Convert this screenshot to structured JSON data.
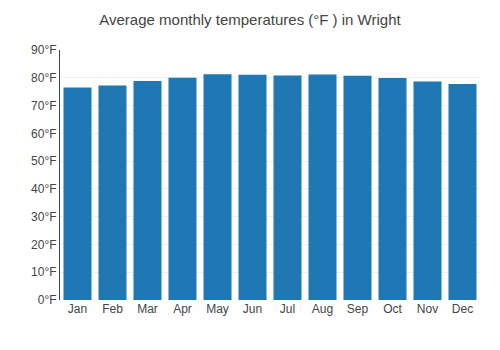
{
  "chart_data": {
    "type": "bar",
    "title": "Average monthly temperatures (°F ) in Wright",
    "categories": [
      "Jan",
      "Feb",
      "Mar",
      "Apr",
      "May",
      "Jun",
      "Jul",
      "Aug",
      "Sep",
      "Oct",
      "Nov",
      "Dec"
    ],
    "values": [
      76.5,
      77.2,
      78.8,
      80.0,
      81.3,
      81.1,
      80.8,
      81.2,
      80.7,
      79.9,
      78.7,
      77.8
    ],
    "ylim": [
      0,
      90
    ],
    "yticks": [
      {
        "value": 0,
        "label": "0°F"
      },
      {
        "value": 10,
        "label": "10°F"
      },
      {
        "value": 20,
        "label": "20°F"
      },
      {
        "value": 30,
        "label": "30°F"
      },
      {
        "value": 40,
        "label": "40°F"
      },
      {
        "value": 50,
        "label": "50°F"
      },
      {
        "value": 60,
        "label": "60°F"
      },
      {
        "value": 70,
        "label": "70°F"
      },
      {
        "value": 80,
        "label": "80°F"
      },
      {
        "value": 90,
        "label": "90°F"
      }
    ],
    "grid": true
  }
}
